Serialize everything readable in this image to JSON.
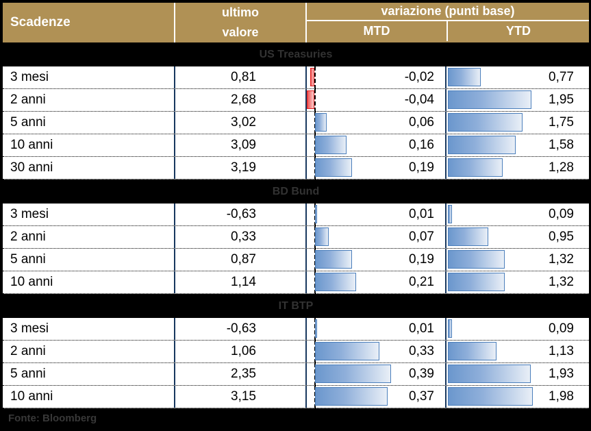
{
  "header": {
    "scadenze": "Scadenze",
    "ultimo_line1": "ultimo",
    "ultimo_line2": "valore",
    "variazione_title": "variazione (punti base)",
    "mtd_label": "MTD",
    "ytd_label": "YTD"
  },
  "footer": {
    "source_label": "Fonte: Bloomberg"
  },
  "colors": {
    "header_gold": "#B09155",
    "column_line_navy": "#17375E",
    "bar_blue_border": "#4A7EBB",
    "bar_blue_fill_start": "#6B97CD",
    "bar_blue_fill_end": "#E9EFF7",
    "bar_red_border": "#E02020",
    "bar_red_fill_start": "#F05050",
    "bar_red_fill_end": "#FAD0D0",
    "band_text": "#323232"
  },
  "chart_data": {
    "type": "table",
    "title": "variazione (punti base)",
    "columns": [
      "Scadenze",
      "ultimo valore",
      "MTD",
      "YTD"
    ],
    "notes": "MTD and YTD cells contain horizontal data bars; negative values drawn red to the left of a dashed zero baseline, positive values blue to the right. Values use Italian decimal commas.",
    "sections": [
      {
        "title": "US Treasuries",
        "rows": [
          {
            "label": "3 mesi",
            "ultimo": "0,81",
            "mtd": "-0,02",
            "ytd": "0,77",
            "ultimo_value": 0.81,
            "mtd_value": -0.02,
            "ytd_value": 0.77
          },
          {
            "label": "2 anni",
            "ultimo": "2,68",
            "mtd": "-0,04",
            "ytd": "1,95",
            "ultimo_value": 2.68,
            "mtd_value": -0.04,
            "ytd_value": 1.95
          },
          {
            "label": "5 anni",
            "ultimo": "3,02",
            "mtd": "0,06",
            "ytd": "1,75",
            "ultimo_value": 3.02,
            "mtd_value": 0.06,
            "ytd_value": 1.75
          },
          {
            "label": "10 anni",
            "ultimo": "3,09",
            "mtd": "0,16",
            "ytd": "1,58",
            "ultimo_value": 3.09,
            "mtd_value": 0.16,
            "ytd_value": 1.58
          },
          {
            "label": "30 anni",
            "ultimo": "3,19",
            "mtd": "0,19",
            "ytd": "1,28",
            "ultimo_value": 3.19,
            "mtd_value": 0.19,
            "ytd_value": 1.28
          }
        ]
      },
      {
        "title": "BD Bund",
        "rows": [
          {
            "label": "3 mesi",
            "ultimo": "-0,63",
            "mtd": "0,01",
            "ytd": "0,09",
            "ultimo_value": -0.63,
            "mtd_value": 0.01,
            "ytd_value": 0.09
          },
          {
            "label": "2 anni",
            "ultimo": "0,33",
            "mtd": "0,07",
            "ytd": "0,95",
            "ultimo_value": 0.33,
            "mtd_value": 0.07,
            "ytd_value": 0.95
          },
          {
            "label": "5 anni",
            "ultimo": "0,87",
            "mtd": "0,19",
            "ytd": "1,32",
            "ultimo_value": 0.87,
            "mtd_value": 0.19,
            "ytd_value": 1.32
          },
          {
            "label": "10 anni",
            "ultimo": "1,14",
            "mtd": "0,21",
            "ytd": "1,32",
            "ultimo_value": 1.14,
            "mtd_value": 0.21,
            "ytd_value": 1.32
          }
        ]
      },
      {
        "title": "IT BTP",
        "rows": [
          {
            "label": "3 mesi",
            "ultimo": "-0,63",
            "mtd": "0,01",
            "ytd": "0,09",
            "ultimo_value": -0.63,
            "mtd_value": 0.01,
            "ytd_value": 0.09
          },
          {
            "label": "2 anni",
            "ultimo": "1,06",
            "mtd": "0,33",
            "ytd": "1,13",
            "ultimo_value": 1.06,
            "mtd_value": 0.33,
            "ytd_value": 1.13
          },
          {
            "label": "5 anni",
            "ultimo": "2,35",
            "mtd": "0,39",
            "ytd": "1,93",
            "ultimo_value": 2.35,
            "mtd_value": 0.39,
            "ytd_value": 1.93
          },
          {
            "label": "10 anni",
            "ultimo": "3,15",
            "mtd": "0,37",
            "ytd": "1,98",
            "ultimo_value": 3.15,
            "mtd_value": 0.37,
            "ytd_value": 1.98
          }
        ]
      }
    ]
  }
}
